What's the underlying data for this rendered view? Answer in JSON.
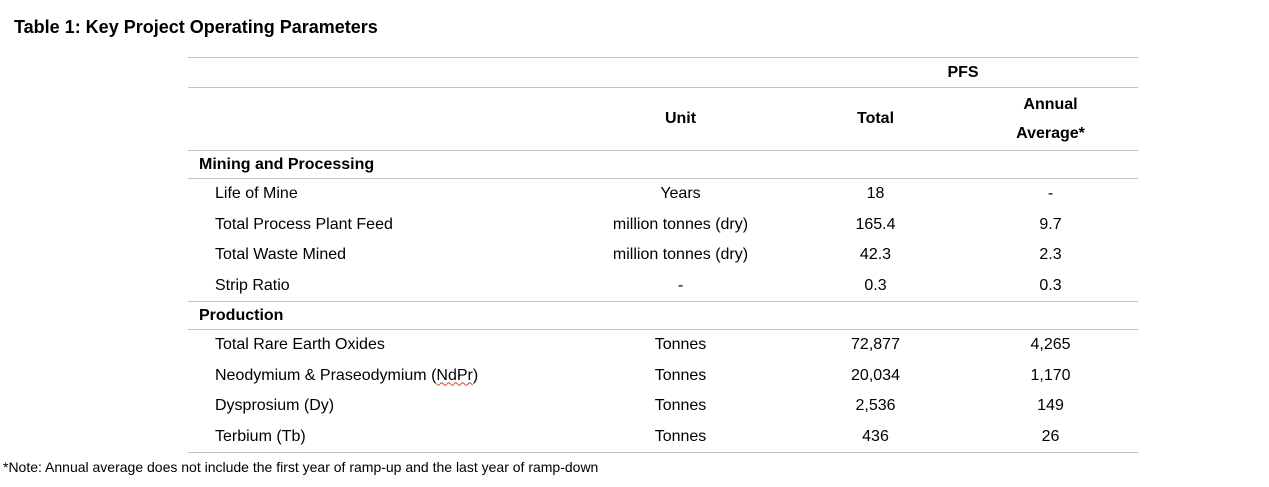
{
  "title": "Table 1: Key Project Operating Parameters",
  "table": {
    "group_header": "PFS",
    "columns": {
      "param": "",
      "unit": "Unit",
      "total": "Total",
      "annual": "Annual Average*"
    },
    "sections": [
      {
        "header": "Mining and Processing",
        "rows": [
          {
            "label": "Life of Mine",
            "unit": "Years",
            "total": "18",
            "annual": "-"
          },
          {
            "label": "Total Process Plant Feed",
            "unit": "million tonnes (dry)",
            "total": "165.4",
            "annual": "9.7"
          },
          {
            "label": "Total Waste Mined",
            "unit": "million tonnes (dry)",
            "total": "42.3",
            "annual": "2.3"
          },
          {
            "label": "Strip Ratio",
            "unit": "-",
            "total": "0.3",
            "annual": "0.3"
          }
        ]
      },
      {
        "header": "Production",
        "rows": [
          {
            "label": "Total Rare Earth Oxides",
            "unit": "Tonnes",
            "total": "72,877",
            "annual": "4,265"
          },
          {
            "label_prefix": "Neodymium & Praseodymium (",
            "label_spellcheck": "NdPr",
            "label_suffix": ")",
            "unit": "Tonnes",
            "total": "20,034",
            "annual": "1,170"
          },
          {
            "label": "Dysprosium (Dy)",
            "unit": "Tonnes",
            "total": "2,536",
            "annual": "149"
          },
          {
            "label": "Terbium (Tb)",
            "unit": "Tonnes",
            "total": "436",
            "annual": "26"
          }
        ]
      }
    ]
  },
  "footnote": "*Note: Annual average does not include the first year of ramp-up and the last year of ramp-down",
  "colors": {
    "background": "#ffffff",
    "text": "#000000",
    "border": "#c2c2c2",
    "spellcheck_underline": "#e33b2e"
  }
}
